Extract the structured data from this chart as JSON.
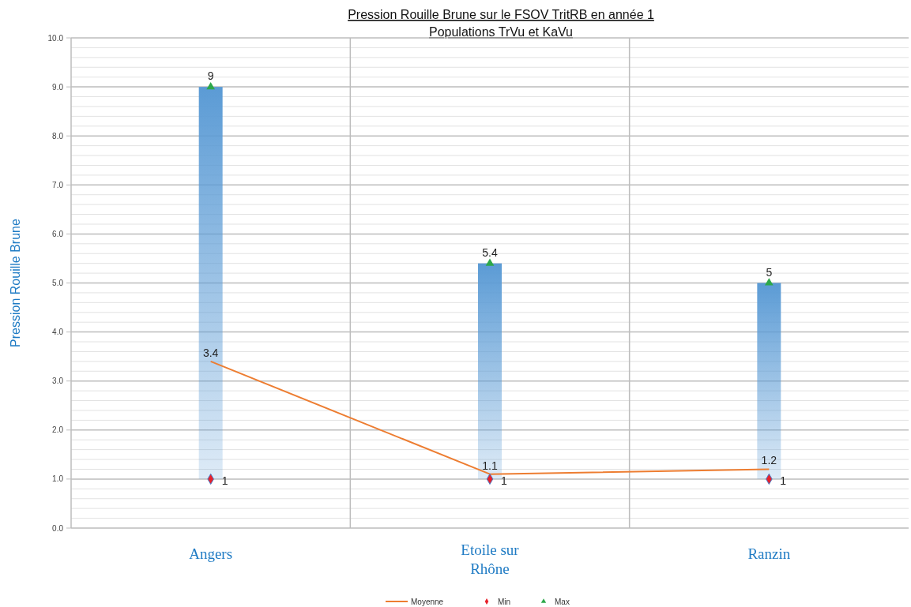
{
  "chart_data": {
    "type": "bar",
    "title": "Pression Rouille Brune sur le FSOV TritRB en année 1",
    "subtitle": "Populations TrVu et KaVu",
    "ylabel": "Pression Rouille Brune",
    "categories": [
      "Angers",
      "Etoile sur Rhône",
      "Ranzin"
    ],
    "series": [
      {
        "color": "#5b9bd5",
        "base": [
          1,
          1,
          1
        ],
        "values": [
          8,
          4.4,
          4
        ]
      },
      {
        "type": "line",
        "name": "Moyenne",
        "color": "#ed7d31",
        "values": [
          3.4,
          1.1,
          1.2
        ],
        "value_labels": [
          "3.4",
          "1.1",
          "1.2"
        ],
        "marker": "none"
      },
      {
        "type": "scatter",
        "name": "Min",
        "color": "#e8202a",
        "values": [
          1,
          1,
          1
        ],
        "value_labels": [
          "1",
          "1",
          "1"
        ],
        "marker": "diamond"
      },
      {
        "type": "scatter",
        "name": "Max",
        "color": "#2ea84a",
        "values": [
          9,
          5.4,
          5
        ],
        "value_labels": [
          "9",
          "5.4",
          "5"
        ],
        "marker": "triangle"
      }
    ],
    "ylim": [
      0,
      10
    ],
    "yticks": [
      {
        "value": 0,
        "label": "0.0"
      },
      {
        "value": 1,
        "label": "1.0"
      },
      {
        "value": 2,
        "label": "2.0"
      },
      {
        "value": 3,
        "label": "3.0"
      },
      {
        "value": 4,
        "label": "4.0"
      },
      {
        "value": 5,
        "label": "5.0"
      },
      {
        "value": 6,
        "label": "6.0"
      },
      {
        "value": 7,
        "label": "7.0"
      },
      {
        "value": 8,
        "label": "8.0"
      },
      {
        "value": 9,
        "label": "9.0"
      },
      {
        "value": 10,
        "label": "10.0"
      }
    ],
    "grid": true,
    "legend": "bottom"
  }
}
